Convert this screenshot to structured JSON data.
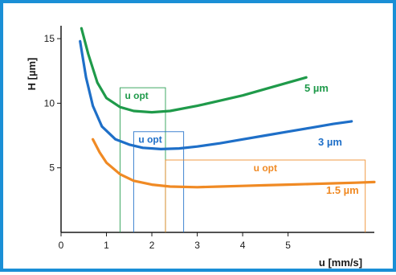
{
  "chart_data": {
    "type": "line",
    "xlabel": "u [mm/s]",
    "ylabel": "H [µm]",
    "xlim": [
      0,
      6.9
    ],
    "ylim": [
      0,
      16
    ],
    "x_ticks": [
      "0",
      "1",
      "2",
      "3",
      "4",
      "5"
    ],
    "y_ticks": [
      "5",
      "10",
      "15"
    ],
    "grid": false,
    "series": [
      {
        "name": "5 µm",
        "color": "#1f9a4a",
        "x": [
          0.45,
          0.6,
          0.8,
          1.0,
          1.3,
          1.6,
          2.0,
          2.4,
          3.0,
          3.5,
          4.0,
          4.5,
          5.0,
          5.4
        ],
        "y": [
          15.8,
          13.8,
          11.6,
          10.4,
          9.7,
          9.4,
          9.3,
          9.4,
          9.8,
          10.2,
          10.6,
          11.1,
          11.6,
          12.0
        ]
      },
      {
        "name": "3 µm",
        "color": "#1e6fc8",
        "x": [
          0.42,
          0.55,
          0.7,
          0.9,
          1.2,
          1.5,
          1.8,
          2.2,
          2.6,
          3.0,
          3.5,
          4.0,
          4.5,
          5.0,
          5.5,
          6.0,
          6.4
        ],
        "y": [
          14.8,
          12.0,
          9.8,
          8.2,
          7.2,
          6.8,
          6.55,
          6.45,
          6.5,
          6.65,
          6.9,
          7.2,
          7.5,
          7.8,
          8.1,
          8.4,
          8.6
        ]
      },
      {
        "name": "1.5 µm",
        "color": "#f08a24",
        "x": [
          0.7,
          0.85,
          1.0,
          1.3,
          1.6,
          2.0,
          2.4,
          3.0,
          3.5,
          4.0,
          4.5,
          5.0,
          5.5,
          6.0,
          6.5,
          6.9
        ],
        "y": [
          7.2,
          6.2,
          5.4,
          4.5,
          4.0,
          3.7,
          3.55,
          3.5,
          3.55,
          3.6,
          3.65,
          3.7,
          3.75,
          3.8,
          3.85,
          3.9
        ]
      }
    ],
    "annotations": [
      {
        "text": "u opt",
        "series": "5 µm",
        "color": "#1f9a4a",
        "box_x": [
          1.3,
          2.3
        ],
        "box_top": 11.2
      },
      {
        "text": "u opt",
        "series": "3 µm",
        "color": "#1e6fc8",
        "box_x": [
          1.6,
          2.7
        ],
        "box_top": 7.8
      },
      {
        "text": "u opt",
        "series": "1.5 µm",
        "color": "#f08a24",
        "box_x": [
          2.3,
          6.7
        ],
        "box_top": 5.6
      }
    ]
  }
}
